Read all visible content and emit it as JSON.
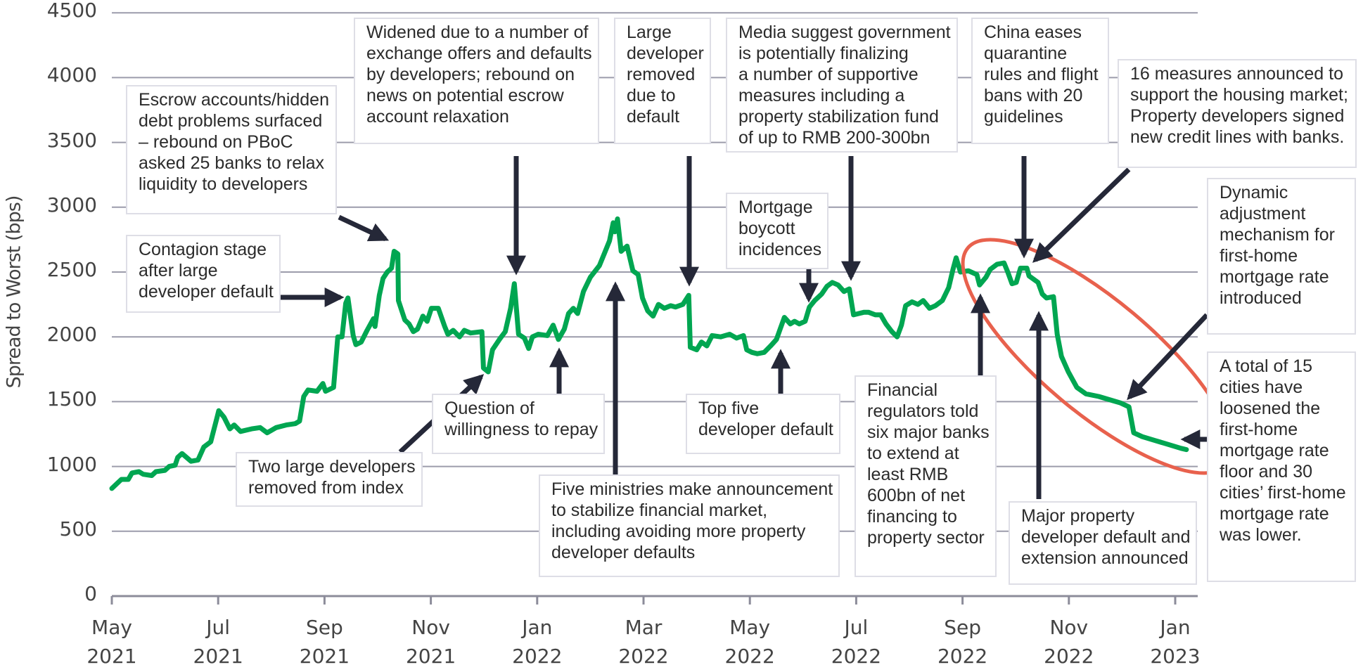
{
  "chart_data": {
    "type": "line",
    "title": "",
    "ylabel": "Spread to Worst (bps)",
    "xlabel": "",
    "ylim": [
      0,
      4500
    ],
    "yticks": [
      "0",
      "500",
      "1000",
      "1500",
      "2000",
      "2500",
      "3000",
      "3500",
      "4000",
      "4500"
    ],
    "ytick_values": [
      0,
      500,
      1000,
      1500,
      2000,
      2500,
      3000,
      3500,
      4000,
      4500
    ],
    "x_unit": "months since May 2021",
    "xlim": [
      0,
      20.4
    ],
    "xticks": [
      {
        "month": 0,
        "label": "May\n2021"
      },
      {
        "month": 2,
        "label": "Jul\n2021"
      },
      {
        "month": 4,
        "label": "Sep\n2021"
      },
      {
        "month": 6,
        "label": "Nov\n2021"
      },
      {
        "month": 8,
        "label": "Jan\n2022"
      },
      {
        "month": 10,
        "label": "Mar\n2022"
      },
      {
        "month": 12,
        "label": "May\n2022"
      },
      {
        "month": 14,
        "label": "Jul\n2022"
      },
      {
        "month": 16,
        "label": "Sep\n2022"
      },
      {
        "month": 18,
        "label": "Nov\n2022"
      },
      {
        "month": 20,
        "label": "Jan\n2023"
      }
    ],
    "grid": true,
    "colors": {
      "line": "#00a651",
      "grid": "#9c9cab",
      "arrow": "#252838",
      "highlight": "#e8614d"
    },
    "series": [
      {
        "name": "Spread to Worst",
        "points": [
          [
            0,
            830
          ],
          [
            0.1,
            870
          ],
          [
            0.18,
            900
          ],
          [
            0.31,
            900
          ],
          [
            0.38,
            950
          ],
          [
            0.51,
            960
          ],
          [
            0.59,
            940
          ],
          [
            0.75,
            930
          ],
          [
            0.83,
            960
          ],
          [
            1.0,
            970
          ],
          [
            1.08,
            1000
          ],
          [
            1.19,
            1010
          ],
          [
            1.24,
            1070
          ],
          [
            1.32,
            1100
          ],
          [
            1.49,
            1040
          ],
          [
            1.62,
            1050
          ],
          [
            1.73,
            1150
          ],
          [
            1.86,
            1190
          ],
          [
            1.98,
            1380
          ],
          [
            2.01,
            1430
          ],
          [
            2.11,
            1380
          ],
          [
            2.22,
            1290
          ],
          [
            2.3,
            1320
          ],
          [
            2.42,
            1270
          ],
          [
            2.63,
            1290
          ],
          [
            2.79,
            1300
          ],
          [
            2.92,
            1260
          ],
          [
            3.09,
            1300
          ],
          [
            3.28,
            1320
          ],
          [
            3.45,
            1330
          ],
          [
            3.53,
            1350
          ],
          [
            3.61,
            1540
          ],
          [
            3.69,
            1590
          ],
          [
            3.86,
            1580
          ],
          [
            3.97,
            1640
          ],
          [
            4.02,
            1580
          ],
          [
            4.17,
            1610
          ],
          [
            4.25,
            2000
          ],
          [
            4.33,
            2000
          ],
          [
            4.4,
            2260
          ],
          [
            4.44,
            2300
          ],
          [
            4.54,
            2010
          ],
          [
            4.59,
            1940
          ],
          [
            4.69,
            1960
          ],
          [
            4.8,
            2050
          ],
          [
            4.92,
            2140
          ],
          [
            4.95,
            2080
          ],
          [
            5.03,
            2320
          ],
          [
            5.1,
            2450
          ],
          [
            5.18,
            2500
          ],
          [
            5.26,
            2530
          ],
          [
            5.31,
            2660
          ],
          [
            5.38,
            2640
          ],
          [
            5.39,
            2280
          ],
          [
            5.51,
            2130
          ],
          [
            5.59,
            2100
          ],
          [
            5.67,
            2040
          ],
          [
            5.75,
            2060
          ],
          [
            5.85,
            2160
          ],
          [
            5.93,
            2120
          ],
          [
            6.01,
            2220
          ],
          [
            6.14,
            2220
          ],
          [
            6.26,
            2080
          ],
          [
            6.32,
            2020
          ],
          [
            6.42,
            2050
          ],
          [
            6.54,
            2000
          ],
          [
            6.63,
            2050
          ],
          [
            6.75,
            2030
          ],
          [
            6.96,
            2040
          ],
          [
            6.99,
            1760
          ],
          [
            7.08,
            1730
          ],
          [
            7.16,
            1900
          ],
          [
            7.29,
            1980
          ],
          [
            7.4,
            2040
          ],
          [
            7.5,
            2220
          ],
          [
            7.57,
            2410
          ],
          [
            7.65,
            2020
          ],
          [
            7.76,
            1990
          ],
          [
            7.84,
            1910
          ],
          [
            7.91,
            2000
          ],
          [
            8.02,
            2020
          ],
          [
            8.19,
            2010
          ],
          [
            8.3,
            2090
          ],
          [
            8.4,
            1980
          ],
          [
            8.51,
            2060
          ],
          [
            8.59,
            2180
          ],
          [
            8.68,
            2220
          ],
          [
            8.76,
            2180
          ],
          [
            8.87,
            2350
          ],
          [
            9.0,
            2460
          ],
          [
            9.17,
            2550
          ],
          [
            9.28,
            2660
          ],
          [
            9.36,
            2740
          ],
          [
            9.43,
            2880
          ],
          [
            9.46,
            2810
          ],
          [
            9.51,
            2910
          ],
          [
            9.58,
            2660
          ],
          [
            9.69,
            2700
          ],
          [
            9.8,
            2510
          ],
          [
            9.9,
            2480
          ],
          [
            9.98,
            2300
          ],
          [
            10.08,
            2200
          ],
          [
            10.18,
            2160
          ],
          [
            10.28,
            2250
          ],
          [
            10.39,
            2220
          ],
          [
            10.51,
            2240
          ],
          [
            10.6,
            2230
          ],
          [
            10.74,
            2250
          ],
          [
            10.85,
            2320
          ],
          [
            10.88,
            1920
          ],
          [
            11.0,
            1900
          ],
          [
            11.09,
            1960
          ],
          [
            11.19,
            1930
          ],
          [
            11.29,
            2010
          ],
          [
            11.45,
            2000
          ],
          [
            11.62,
            2020
          ],
          [
            11.75,
            1990
          ],
          [
            11.88,
            2010
          ],
          [
            11.94,
            1900
          ],
          [
            12.04,
            1880
          ],
          [
            12.14,
            1870
          ],
          [
            12.27,
            1880
          ],
          [
            12.39,
            1930
          ],
          [
            12.5,
            1980
          ],
          [
            12.57,
            2060
          ],
          [
            12.65,
            2150
          ],
          [
            12.76,
            2100
          ],
          [
            12.84,
            2120
          ],
          [
            12.93,
            2100
          ],
          [
            13.04,
            2120
          ],
          [
            13.12,
            2230
          ],
          [
            13.22,
            2280
          ],
          [
            13.35,
            2330
          ],
          [
            13.45,
            2390
          ],
          [
            13.55,
            2420
          ],
          [
            13.66,
            2400
          ],
          [
            13.77,
            2350
          ],
          [
            13.87,
            2370
          ],
          [
            13.95,
            2170
          ],
          [
            14.05,
            2180
          ],
          [
            14.15,
            2190
          ],
          [
            14.23,
            2190
          ],
          [
            14.36,
            2170
          ],
          [
            14.46,
            2170
          ],
          [
            14.56,
            2100
          ],
          [
            14.67,
            2040
          ],
          [
            14.77,
            2000
          ],
          [
            14.85,
            2090
          ],
          [
            14.93,
            2240
          ],
          [
            15.05,
            2270
          ],
          [
            15.16,
            2250
          ],
          [
            15.26,
            2280
          ],
          [
            15.38,
            2220
          ],
          [
            15.49,
            2240
          ],
          [
            15.62,
            2280
          ],
          [
            15.74,
            2380
          ],
          [
            15.82,
            2520
          ],
          [
            15.88,
            2610
          ],
          [
            15.96,
            2500
          ],
          [
            16.11,
            2510
          ],
          [
            16.27,
            2480
          ],
          [
            16.32,
            2400
          ],
          [
            16.44,
            2460
          ],
          [
            16.52,
            2520
          ],
          [
            16.65,
            2560
          ],
          [
            16.78,
            2570
          ],
          [
            16.85,
            2500
          ],
          [
            16.93,
            2410
          ],
          [
            17.01,
            2420
          ],
          [
            17.09,
            2530
          ],
          [
            17.21,
            2530
          ],
          [
            17.25,
            2470
          ],
          [
            17.42,
            2420
          ],
          [
            17.5,
            2330
          ],
          [
            17.58,
            2300
          ],
          [
            17.71,
            2310
          ],
          [
            17.78,
            2020
          ],
          [
            17.86,
            1850
          ],
          [
            17.99,
            1730
          ],
          [
            18.15,
            1610
          ],
          [
            18.32,
            1560
          ],
          [
            18.56,
            1540
          ],
          [
            18.81,
            1510
          ],
          [
            18.97,
            1490
          ],
          [
            19.13,
            1460
          ],
          [
            19.22,
            1260
          ],
          [
            19.38,
            1230
          ],
          [
            19.62,
            1200
          ],
          [
            19.87,
            1170
          ],
          [
            20.11,
            1140
          ],
          [
            20.21,
            1130
          ]
        ]
      }
    ],
    "annotations": [
      {
        "id": "escrow",
        "text": "Escrow accounts/hidden\ndebt problems surfaced\n– rebound on PBoC\nasked 25 banks to relax\nliquidity to developers"
      },
      {
        "id": "widened",
        "text": "Widened due to a number of\nexchange offers and defaults\nby developers; rebound on\nnews on potential escrow\naccount relaxation"
      },
      {
        "id": "large-dev-removed",
        "text": "Large\ndeveloper\nremoved\ndue to\ndefault"
      },
      {
        "id": "media",
        "text": "Media suggest government\nis potentially finalizing\na number of supportive\nmeasures including a\nproperty stabilization fund\nof up to RMB 200-300bn"
      },
      {
        "id": "china-eases",
        "text": "China eases\nquarantine\nrules and flight\nbans with 20\nguidelines"
      },
      {
        "id": "sixteen-measures",
        "text": "16 measures announced to\nsupport the housing market;\nProperty developers signed\nnew credit lines with banks."
      },
      {
        "id": "dynamic",
        "text": "Dynamic\nadjustment\nmechanism for\nfirst-home\nmortgage rate\nintroduced"
      },
      {
        "id": "fifteen-cities",
        "text": "A total of 15\ncities have\nloosened the\nfirst-home\nmortgage rate\nfloor and 30\ncities’ first-home\nmortgage rate\nwas lower."
      },
      {
        "id": "contagion",
        "text": "Contagion stage\nafter large\ndeveloper default"
      },
      {
        "id": "mortgage-boycott",
        "text": "Mortgage\nboycott\nincidences"
      },
      {
        "id": "question",
        "text": "Question of\nwillingness to repay"
      },
      {
        "id": "two-large",
        "text": "Two large developers\nremoved from index"
      },
      {
        "id": "top-five",
        "text": "Top five\ndeveloper default"
      },
      {
        "id": "five-ministries",
        "text": "Five ministries make announcement\nto stabilize financial market,\nincluding avoiding more property\ndeveloper defaults"
      },
      {
        "id": "financial-regulators",
        "text": "Financial\nregulators told\nsix major banks\nto extend at\nleast RMB\n600bn of net\nfinancing to\nproperty sector"
      },
      {
        "id": "major-property",
        "text": "Major property\ndeveloper default and\nextension announced"
      }
    ]
  }
}
